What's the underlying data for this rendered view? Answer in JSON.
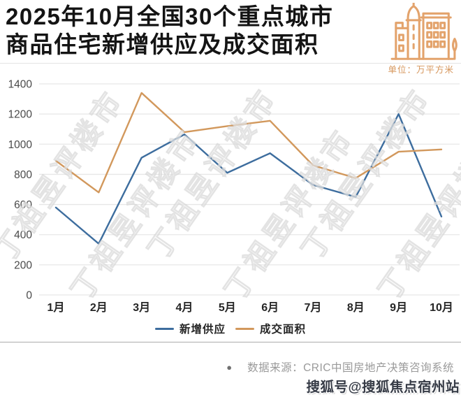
{
  "header": {
    "title_line1": "2025年10月全国30个重点城市",
    "title_line2": "商品住宅新增供应及成交面积",
    "unit_label": "单位：万平方米"
  },
  "chart_data": {
    "type": "line",
    "title": "2025年10月全国30个重点城市商品住宅新增供应及成交面积",
    "unit": "万平方米",
    "categories": [
      "1月",
      "2月",
      "3月",
      "4月",
      "5月",
      "6月",
      "7月",
      "8月",
      "9月",
      "10月"
    ],
    "series": [
      {
        "name": "新增供应",
        "color": "#3D6D9E",
        "values": [
          580,
          340,
          910,
          1065,
          810,
          940,
          730,
          650,
          1200,
          520
        ]
      },
      {
        "name": "成交面积",
        "color": "#D2985C",
        "values": [
          890,
          680,
          1340,
          1080,
          1120,
          1155,
          860,
          775,
          950,
          965
        ]
      }
    ],
    "ylim": [
      0,
      1400
    ],
    "yticks": [
      0,
      200,
      400,
      600,
      800,
      1000,
      1200,
      1400
    ],
    "grid": true,
    "legend_position": "bottom"
  },
  "watermark": {
    "text": "丁祖昱评楼市"
  },
  "footer": {
    "bullet": "●",
    "source_text": "数据来源：CRIC中国房地产决策咨询系统",
    "sohu_watermark": "搜狐号@搜狐焦点宿州站"
  },
  "colors": {
    "icon": "#E3A36C",
    "unit_text": "#D6955A",
    "title_text": "#141414"
  }
}
